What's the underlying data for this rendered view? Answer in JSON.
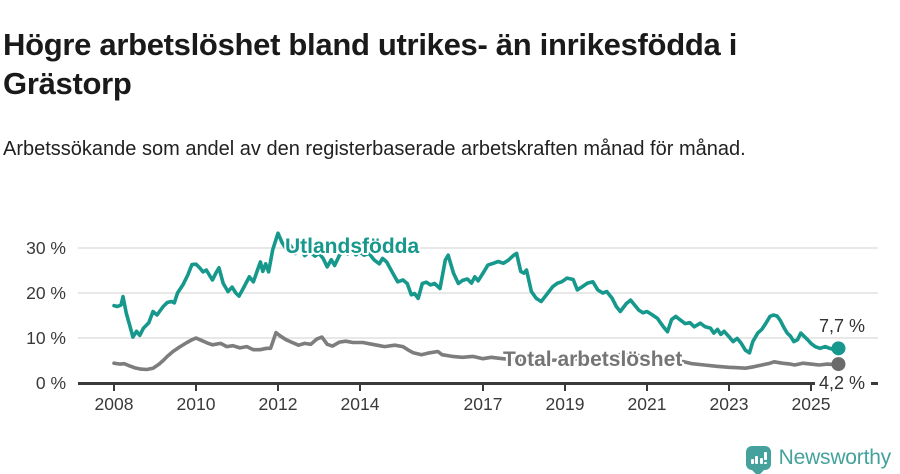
{
  "header": {
    "title": "Högre arbetslöshet bland utrikes- än inrikesfödda i Grästorp",
    "subtitle": "Arbetssökande som andel av den registerbaserade arbetskraften månad för månad."
  },
  "branding": {
    "logo_text": "Newsworthy",
    "logo_icon": "newsworthy-bar-chart-speech-bubble"
  },
  "colors": {
    "foreign_born_line": "#16988c",
    "total_line": "#7d7d7d",
    "total_label": "#757575",
    "axis": "#3a3a3a",
    "grid": "#d9d9d9",
    "end_label_text": "#333333",
    "brand_teal": "#45a19b"
  },
  "chart_data": {
    "type": "line",
    "title": "Högre arbetslöshet bland utrikes- än inrikesfödda i Grästorp",
    "subtitle": "Arbetssökande som andel av den registerbaserade arbetskraften månad för månad.",
    "xlabel": "",
    "ylabel": "",
    "x_unit": "year (monthly observations)",
    "xlim": [
      2007.1,
      2026.6
    ],
    "ylim": [
      0,
      35
    ],
    "grid": "horizontal",
    "legend_position": "inline-labels-on-lines",
    "y_ticks": [
      {
        "value": 30,
        "label": "30 %"
      },
      {
        "value": 20,
        "label": "20 %"
      },
      {
        "value": 10,
        "label": "10 %"
      },
      {
        "value": 0,
        "label": "0 %"
      }
    ],
    "x_ticks": [
      {
        "value": 2008,
        "label": "2008"
      },
      {
        "value": 2010,
        "label": "2010"
      },
      {
        "value": 2012,
        "label": "2012"
      },
      {
        "value": 2014,
        "label": "2014"
      },
      {
        "value": 2017,
        "label": "2017"
      },
      {
        "value": 2019,
        "label": "2019"
      },
      {
        "value": 2021,
        "label": "2021"
      },
      {
        "value": 2023,
        "label": "2023"
      },
      {
        "value": 2025,
        "label": "2025"
      }
    ],
    "series": [
      {
        "name": "Utlandsfödda",
        "color": "#16988c",
        "end_label": "7,7 %",
        "last_value": 7.7,
        "points": [
          [
            2008.0,
            17.2
          ],
          [
            2008.08,
            17.0
          ],
          [
            2008.17,
            17.3
          ],
          [
            2008.22,
            19.2
          ],
          [
            2008.3,
            15.5
          ],
          [
            2008.38,
            12.9
          ],
          [
            2008.46,
            10.2
          ],
          [
            2008.55,
            11.5
          ],
          [
            2008.63,
            10.6
          ],
          [
            2008.72,
            12.2
          ],
          [
            2008.85,
            13.4
          ],
          [
            2008.95,
            15.9
          ],
          [
            2009.05,
            15.1
          ],
          [
            2009.2,
            17.0
          ],
          [
            2009.3,
            17.9
          ],
          [
            2009.4,
            18.1
          ],
          [
            2009.47,
            17.8
          ],
          [
            2009.55,
            20.0
          ],
          [
            2009.68,
            21.8
          ],
          [
            2009.8,
            24.0
          ],
          [
            2009.9,
            26.3
          ],
          [
            2010.0,
            26.4
          ],
          [
            2010.08,
            25.7
          ],
          [
            2010.17,
            24.7
          ],
          [
            2010.25,
            25.1
          ],
          [
            2010.4,
            22.9
          ],
          [
            2010.5,
            24.7
          ],
          [
            2010.56,
            25.6
          ],
          [
            2010.66,
            22.2
          ],
          [
            2010.78,
            20.3
          ],
          [
            2010.88,
            21.3
          ],
          [
            2010.97,
            20.0
          ],
          [
            2011.05,
            19.3
          ],
          [
            2011.15,
            21.0
          ],
          [
            2011.3,
            23.6
          ],
          [
            2011.4,
            22.5
          ],
          [
            2011.5,
            25.1
          ],
          [
            2011.57,
            26.9
          ],
          [
            2011.63,
            24.8
          ],
          [
            2011.7,
            26.5
          ],
          [
            2011.77,
            24.7
          ],
          [
            2011.87,
            29.6
          ],
          [
            2012.0,
            33.3
          ],
          [
            2012.1,
            31.2
          ],
          [
            2012.2,
            29.8
          ],
          [
            2012.3,
            30.6
          ],
          [
            2012.42,
            28.8
          ],
          [
            2012.55,
            30.0
          ],
          [
            2012.65,
            28.3
          ],
          [
            2012.77,
            29.3
          ],
          [
            2012.9,
            28.2
          ],
          [
            2013.0,
            28.8
          ],
          [
            2013.1,
            27.7
          ],
          [
            2013.2,
            25.8
          ],
          [
            2013.3,
            27.4
          ],
          [
            2013.38,
            26.1
          ],
          [
            2013.5,
            28.4
          ],
          [
            2013.6,
            29.4
          ],
          [
            2013.7,
            28.7
          ],
          [
            2013.8,
            29.6
          ],
          [
            2013.9,
            28.5
          ],
          [
            2014.0,
            29.1
          ],
          [
            2014.1,
            28.4
          ],
          [
            2014.22,
            28.8
          ],
          [
            2014.35,
            27.3
          ],
          [
            2014.47,
            26.5
          ],
          [
            2014.55,
            27.7
          ],
          [
            2014.65,
            26.9
          ],
          [
            2014.8,
            24.4
          ],
          [
            2014.92,
            22.5
          ],
          [
            2015.05,
            22.9
          ],
          [
            2015.15,
            22.1
          ],
          [
            2015.25,
            19.6
          ],
          [
            2015.33,
            19.9
          ],
          [
            2015.42,
            18.8
          ],
          [
            2015.52,
            22.1
          ],
          [
            2015.62,
            22.4
          ],
          [
            2015.72,
            21.8
          ],
          [
            2015.82,
            22.1
          ],
          [
            2015.95,
            21.0
          ],
          [
            2016.08,
            27.3
          ],
          [
            2016.15,
            28.4
          ],
          [
            2016.28,
            24.4
          ],
          [
            2016.4,
            22.1
          ],
          [
            2016.5,
            22.8
          ],
          [
            2016.62,
            23.1
          ],
          [
            2016.72,
            22.2
          ],
          [
            2016.8,
            23.6
          ],
          [
            2016.88,
            22.7
          ],
          [
            2017.0,
            24.4
          ],
          [
            2017.12,
            26.2
          ],
          [
            2017.25,
            26.6
          ],
          [
            2017.37,
            27.0
          ],
          [
            2017.5,
            26.6
          ],
          [
            2017.62,
            27.3
          ],
          [
            2017.75,
            28.4
          ],
          [
            2017.82,
            28.8
          ],
          [
            2017.92,
            24.8
          ],
          [
            2018.0,
            24.4
          ],
          [
            2018.06,
            25.1
          ],
          [
            2018.18,
            20.3
          ],
          [
            2018.3,
            18.8
          ],
          [
            2018.42,
            18.1
          ],
          [
            2018.55,
            19.6
          ],
          [
            2018.7,
            21.4
          ],
          [
            2018.82,
            22.2
          ],
          [
            2018.92,
            22.5
          ],
          [
            2019.05,
            23.3
          ],
          [
            2019.2,
            23.0
          ],
          [
            2019.3,
            20.7
          ],
          [
            2019.42,
            21.4
          ],
          [
            2019.55,
            22.2
          ],
          [
            2019.68,
            22.5
          ],
          [
            2019.8,
            20.7
          ],
          [
            2019.92,
            20.0
          ],
          [
            2020.02,
            20.3
          ],
          [
            2020.15,
            18.8
          ],
          [
            2020.25,
            17.0
          ],
          [
            2020.35,
            15.9
          ],
          [
            2020.5,
            17.7
          ],
          [
            2020.6,
            18.4
          ],
          [
            2020.7,
            17.3
          ],
          [
            2020.8,
            16.2
          ],
          [
            2020.9,
            15.6
          ],
          [
            2021.0,
            15.9
          ],
          [
            2021.12,
            15.2
          ],
          [
            2021.25,
            14.4
          ],
          [
            2021.4,
            12.5
          ],
          [
            2021.5,
            11.4
          ],
          [
            2021.6,
            14.1
          ],
          [
            2021.7,
            14.8
          ],
          [
            2021.8,
            14.1
          ],
          [
            2021.93,
            13.2
          ],
          [
            2022.05,
            13.4
          ],
          [
            2022.15,
            12.5
          ],
          [
            2022.3,
            13.3
          ],
          [
            2022.42,
            12.5
          ],
          [
            2022.55,
            12.2
          ],
          [
            2022.63,
            11.1
          ],
          [
            2022.72,
            11.9
          ],
          [
            2022.8,
            10.8
          ],
          [
            2022.88,
            11.5
          ],
          [
            2023.0,
            10.3
          ],
          [
            2023.1,
            9.2
          ],
          [
            2023.2,
            9.9
          ],
          [
            2023.3,
            8.8
          ],
          [
            2023.4,
            7.3
          ],
          [
            2023.5,
            6.7
          ],
          [
            2023.58,
            9.2
          ],
          [
            2023.7,
            11.1
          ],
          [
            2023.8,
            11.9
          ],
          [
            2023.9,
            13.3
          ],
          [
            2024.0,
            14.8
          ],
          [
            2024.08,
            15.1
          ],
          [
            2024.17,
            14.9
          ],
          [
            2024.25,
            13.9
          ],
          [
            2024.33,
            12.5
          ],
          [
            2024.42,
            11.1
          ],
          [
            2024.5,
            10.4
          ],
          [
            2024.58,
            9.2
          ],
          [
            2024.67,
            9.6
          ],
          [
            2024.75,
            11.1
          ],
          [
            2024.83,
            10.4
          ],
          [
            2024.92,
            9.6
          ],
          [
            2025.0,
            8.8
          ],
          [
            2025.1,
            8.1
          ],
          [
            2025.22,
            7.7
          ],
          [
            2025.35,
            8.1
          ],
          [
            2025.45,
            7.7
          ],
          [
            2025.58,
            7.4
          ],
          [
            2025.67,
            7.7
          ]
        ]
      },
      {
        "name": "Total arbetslöshet",
        "color": "#7d7d7d",
        "end_label": "4,2 %",
        "last_value": 4.2,
        "points": [
          [
            2008.0,
            4.4
          ],
          [
            2008.15,
            4.2
          ],
          [
            2008.25,
            4.3
          ],
          [
            2008.35,
            3.9
          ],
          [
            2008.5,
            3.4
          ],
          [
            2008.65,
            3.1
          ],
          [
            2008.8,
            3.0
          ],
          [
            2008.95,
            3.3
          ],
          [
            2009.1,
            4.2
          ],
          [
            2009.2,
            5.0
          ],
          [
            2009.3,
            5.9
          ],
          [
            2009.44,
            7.0
          ],
          [
            2009.6,
            8.0
          ],
          [
            2009.78,
            9.0
          ],
          [
            2009.9,
            9.6
          ],
          [
            2010.0,
            10.0
          ],
          [
            2010.1,
            9.6
          ],
          [
            2010.27,
            8.9
          ],
          [
            2010.4,
            8.5
          ],
          [
            2010.6,
            8.8
          ],
          [
            2010.75,
            8.1
          ],
          [
            2010.9,
            8.3
          ],
          [
            2011.07,
            7.8
          ],
          [
            2011.24,
            8.1
          ],
          [
            2011.4,
            7.4
          ],
          [
            2011.56,
            7.4
          ],
          [
            2011.73,
            7.7
          ],
          [
            2011.82,
            7.7
          ],
          [
            2011.95,
            11.2
          ],
          [
            2012.05,
            10.5
          ],
          [
            2012.2,
            9.6
          ],
          [
            2012.35,
            9.0
          ],
          [
            2012.5,
            8.4
          ],
          [
            2012.65,
            8.8
          ],
          [
            2012.8,
            8.6
          ],
          [
            2012.95,
            9.8
          ],
          [
            2013.07,
            10.2
          ],
          [
            2013.2,
            8.6
          ],
          [
            2013.33,
            8.2
          ],
          [
            2013.5,
            9.1
          ],
          [
            2013.65,
            9.3
          ],
          [
            2013.83,
            9.0
          ],
          [
            2014.07,
            9.0
          ],
          [
            2014.3,
            8.6
          ],
          [
            2014.6,
            8.1
          ],
          [
            2014.85,
            8.4
          ],
          [
            2015.05,
            8.1
          ],
          [
            2015.2,
            7.2
          ],
          [
            2015.3,
            6.7
          ],
          [
            2015.5,
            6.3
          ],
          [
            2015.7,
            6.7
          ],
          [
            2015.9,
            7.0
          ],
          [
            2016.0,
            6.3
          ],
          [
            2016.25,
            5.9
          ],
          [
            2016.5,
            5.7
          ],
          [
            2016.75,
            5.9
          ],
          [
            2017.0,
            5.4
          ],
          [
            2017.2,
            5.7
          ],
          [
            2017.4,
            5.5
          ],
          [
            2017.6,
            5.3
          ],
          [
            2018.0,
            5.1
          ],
          [
            2018.4,
            5.0
          ],
          [
            2018.8,
            5.1
          ],
          [
            2019.2,
            5.3
          ],
          [
            2019.6,
            5.5
          ],
          [
            2020.0,
            5.8
          ],
          [
            2020.4,
            6.4
          ],
          [
            2020.8,
            6.1
          ],
          [
            2021.2,
            5.6
          ],
          [
            2021.6,
            5.1
          ],
          [
            2021.9,
            4.7
          ],
          [
            2022.1,
            4.3
          ],
          [
            2022.4,
            4.0
          ],
          [
            2022.7,
            3.7
          ],
          [
            2023.0,
            3.5
          ],
          [
            2023.2,
            3.4
          ],
          [
            2023.4,
            3.3
          ],
          [
            2023.6,
            3.6
          ],
          [
            2023.8,
            4.0
          ],
          [
            2024.0,
            4.4
          ],
          [
            2024.1,
            4.7
          ],
          [
            2024.3,
            4.4
          ],
          [
            2024.5,
            4.2
          ],
          [
            2024.6,
            4.0
          ],
          [
            2024.8,
            4.4
          ],
          [
            2025.0,
            4.2
          ],
          [
            2025.2,
            4.0
          ],
          [
            2025.4,
            4.2
          ],
          [
            2025.55,
            4.1
          ],
          [
            2025.67,
            4.2
          ]
        ]
      }
    ]
  }
}
